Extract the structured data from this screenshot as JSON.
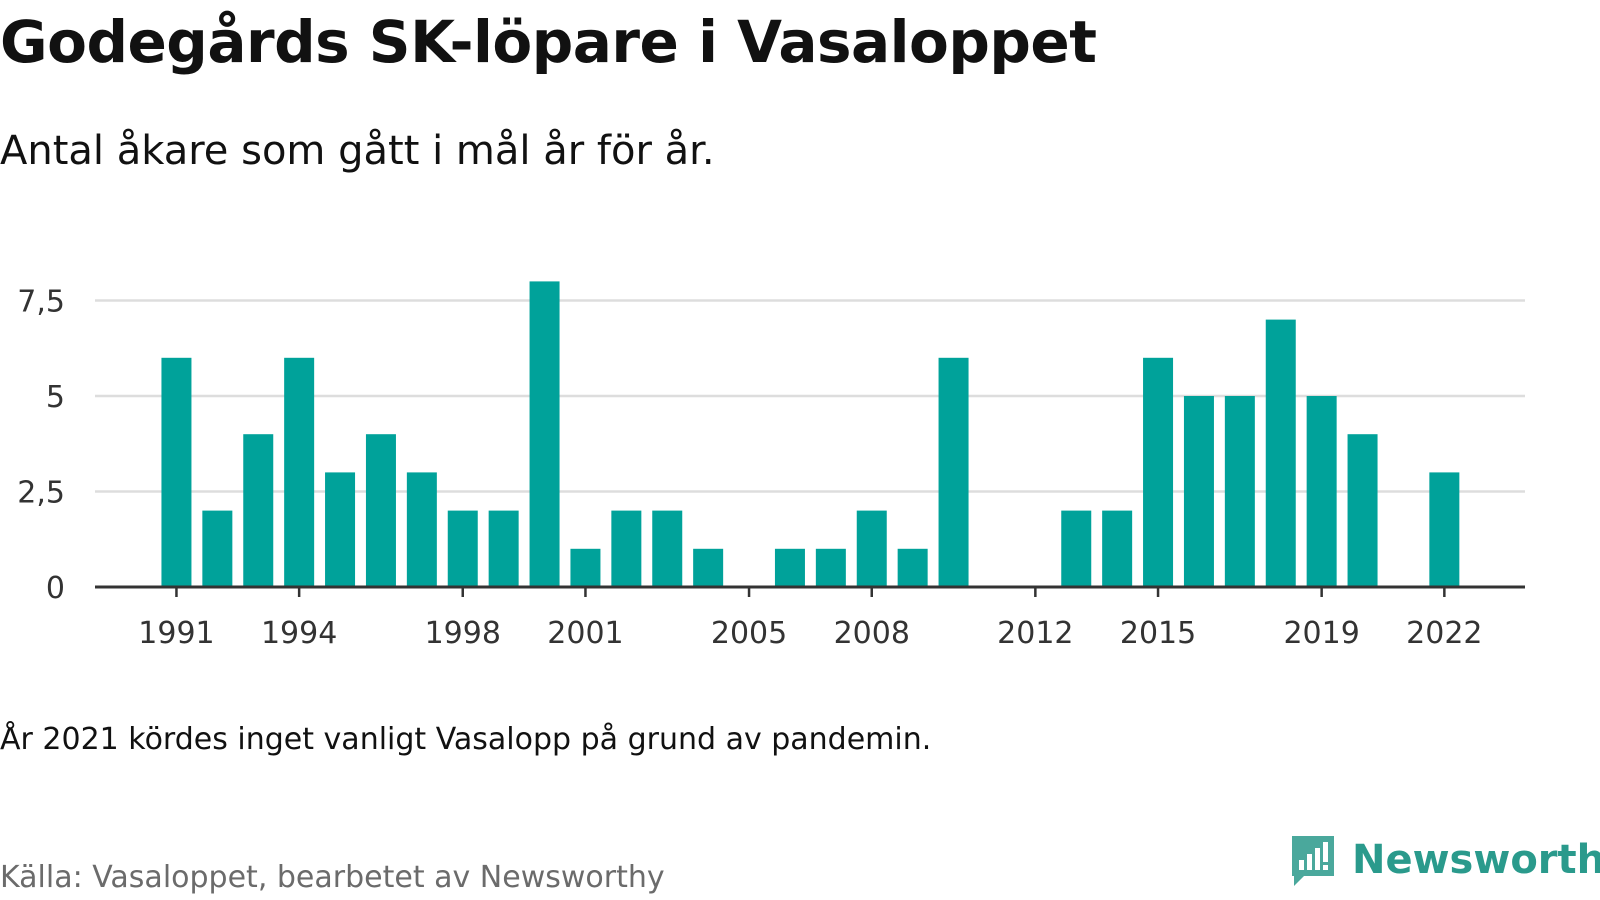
{
  "title": "Godegårds SK-löpare i Vasaloppet",
  "subtitle": "Antal åkare som gått i mål år för år.",
  "note": "År 2021 kördes inget vanligt Vasalopp på grund av pandemin.",
  "source": "Källa: Vasaloppet, bearbetet av Newsworthy",
  "brand": {
    "name": "Newsworthy",
    "color": "#2a9a8c",
    "icon": "newsworthy-logo-icon"
  },
  "colors": {
    "bar": "#00a29a",
    "grid": "#dddddd",
    "axis": "#333333"
  },
  "chart_data": {
    "type": "bar",
    "title": "Godegårds SK-löpare i Vasaloppet",
    "subtitle": "Antal åkare som gått i mål år för år.",
    "xlabel": "",
    "ylabel": "",
    "x": [
      1991,
      1992,
      1993,
      1994,
      1995,
      1996,
      1997,
      1998,
      1999,
      2000,
      2001,
      2002,
      2003,
      2004,
      2005,
      2006,
      2007,
      2008,
      2009,
      2010,
      2011,
      2012,
      2013,
      2014,
      2015,
      2016,
      2017,
      2018,
      2019,
      2020,
      2021,
      2022
    ],
    "values": [
      6,
      2,
      4,
      6,
      3,
      4,
      3,
      2,
      2,
      8,
      1,
      2,
      2,
      1,
      0,
      1,
      1,
      2,
      1,
      6,
      0,
      0,
      2,
      2,
      6,
      5,
      5,
      7,
      5,
      4,
      0,
      3
    ],
    "ylim": [
      0,
      8
    ],
    "yticks": [
      0,
      2.5,
      5,
      7.5
    ],
    "ytick_labels": [
      "0",
      "2,5",
      "5",
      "7,5"
    ],
    "xtick_labels": [
      "1991",
      "1994",
      "1998",
      "2001",
      "2005",
      "2008",
      "2012",
      "2015",
      "2019",
      "2022"
    ],
    "grid": true,
    "legend": "none"
  }
}
